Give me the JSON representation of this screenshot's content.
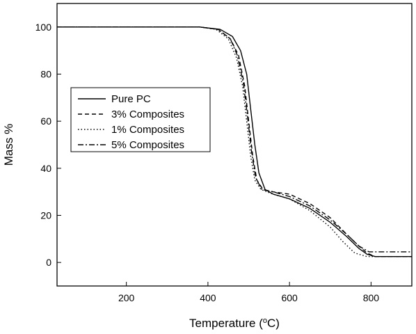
{
  "chart_data": {
    "type": "line",
    "xlabel": "Temperature (",
    "xlabel_super": "o",
    "xlabel_unit": "C)",
    "ylabel": "Mass %",
    "xlim": [
      30,
      900
    ],
    "ylim": [
      -10,
      110
    ],
    "x_ticks": [
      200,
      400,
      600,
      800
    ],
    "y_ticks": [
      0,
      20,
      40,
      60,
      80,
      100
    ],
    "grid": false,
    "legend_position": "left-center",
    "series": [
      {
        "name": "Pure PC",
        "dash": "solid",
        "points": [
          [
            30,
            100
          ],
          [
            380,
            100
          ],
          [
            430,
            99
          ],
          [
            460,
            96
          ],
          [
            480,
            90
          ],
          [
            495,
            80
          ],
          [
            505,
            65
          ],
          [
            515,
            50
          ],
          [
            525,
            38
          ],
          [
            540,
            31
          ],
          [
            560,
            29
          ],
          [
            600,
            27
          ],
          [
            650,
            23
          ],
          [
            700,
            17
          ],
          [
            740,
            11
          ],
          [
            770,
            6
          ],
          [
            790,
            3.5
          ],
          [
            810,
            2.5
          ],
          [
            900,
            2.5
          ]
        ]
      },
      {
        "name": "3% Composites",
        "dash": "dashed",
        "points": [
          [
            30,
            100
          ],
          [
            380,
            100
          ],
          [
            425,
            99
          ],
          [
            455,
            95
          ],
          [
            475,
            88
          ],
          [
            490,
            75
          ],
          [
            500,
            60
          ],
          [
            510,
            45
          ],
          [
            520,
            35
          ],
          [
            535,
            31
          ],
          [
            560,
            30
          ],
          [
            600,
            29
          ],
          [
            650,
            25
          ],
          [
            700,
            19
          ],
          [
            740,
            12
          ],
          [
            770,
            7
          ],
          [
            790,
            4
          ],
          [
            810,
            2.5
          ],
          [
            900,
            2.5
          ]
        ]
      },
      {
        "name": "1% Composites",
        "dash": "dotted",
        "points": [
          [
            30,
            100
          ],
          [
            380,
            100
          ],
          [
            420,
            99
          ],
          [
            450,
            95
          ],
          [
            470,
            87
          ],
          [
            485,
            75
          ],
          [
            495,
            60
          ],
          [
            505,
            45
          ],
          [
            515,
            35
          ],
          [
            530,
            31
          ],
          [
            560,
            29
          ],
          [
            600,
            27
          ],
          [
            650,
            22
          ],
          [
            700,
            15
          ],
          [
            730,
            9
          ],
          [
            760,
            4
          ],
          [
            790,
            2.5
          ],
          [
            900,
            2.5
          ]
        ]
      },
      {
        "name": "5% Composites",
        "dash": "dashdot",
        "points": [
          [
            30,
            100
          ],
          [
            380,
            100
          ],
          [
            425,
            99
          ],
          [
            455,
            95
          ],
          [
            472,
            88
          ],
          [
            487,
            76
          ],
          [
            497,
            62
          ],
          [
            507,
            47
          ],
          [
            517,
            36
          ],
          [
            532,
            31
          ],
          [
            560,
            30
          ],
          [
            600,
            28
          ],
          [
            650,
            24
          ],
          [
            700,
            18
          ],
          [
            740,
            12
          ],
          [
            770,
            7
          ],
          [
            795,
            4.5
          ],
          [
            810,
            4.5
          ],
          [
            900,
            4.5
          ]
        ]
      }
    ]
  }
}
